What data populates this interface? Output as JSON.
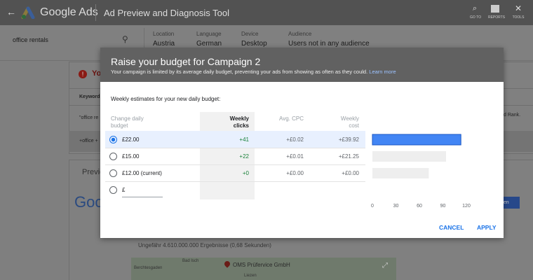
{
  "header": {
    "brand": "Google Ads",
    "tool": "Ad Preview and Diagnosis Tool",
    "icons": [
      "GO TO",
      "REPORTS",
      "TOOLS"
    ]
  },
  "search": {
    "query": "office rentals"
  },
  "filters": [
    {
      "label": "Location",
      "value": "Austria"
    },
    {
      "label": "Language",
      "value": "German"
    },
    {
      "label": "Device",
      "value": "Desktop"
    },
    {
      "label": "Audience",
      "value": "Users not in any audience"
    }
  ],
  "background": {
    "alert": "Yo",
    "keyword_header": "Keyword",
    "keyword_row1": "\"office re",
    "keyword_row2": "+office +",
    "rank_text": "d Rank.",
    "preview": "Previe",
    "logo": "Goo",
    "button": "den",
    "results": "Ungefähr 4.610.000.000 Ergebnisse (0,68 Sekunden)",
    "map_town1": "Bad Isch",
    "map_town2": "Berchtesgaden",
    "map_place": "OMS Prüfervice GmbH",
    "map_town3": "Liezen"
  },
  "dialog": {
    "title": "Raise your budget for Campaign 2",
    "subtitle": "Your campaign is limited by its average daily budget, preventing your ads from showing as often as they could.",
    "link": "Learn more",
    "section_label": "Weekly estimates for your new daily budget:",
    "columns": [
      "Change daily budget",
      "Weekly clicks",
      "Avg. CPC",
      "Weekly cost"
    ],
    "rows": [
      {
        "budget": "£22.00",
        "clicks": "+41",
        "cpc": "+£0.02",
        "cost": "+£39.92"
      },
      {
        "budget": "£15.00",
        "clicks": "+22",
        "cpc": "+£0.01",
        "cost": "+£21.25"
      },
      {
        "budget": "£12.00 (current)",
        "clicks": "+0",
        "cpc": "+£0.00",
        "cost": "+£0.00"
      }
    ],
    "custom_prefix": "£",
    "chart": {
      "type": "bar",
      "values": [
        113,
        94,
        72
      ],
      "colors": [
        "#4285f4",
        "#eeeeee",
        "#eeeeee"
      ],
      "xlim": [
        0,
        120
      ],
      "xticks": [
        0,
        30,
        60,
        90,
        120
      ]
    },
    "cancel": "CANCEL",
    "apply": "APPLY"
  }
}
